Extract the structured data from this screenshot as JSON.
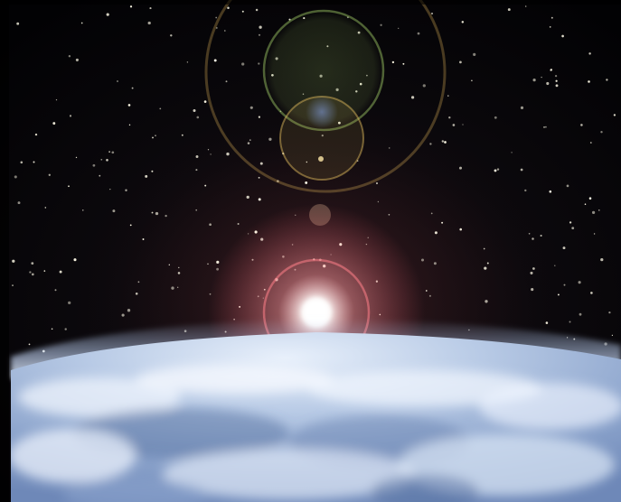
{
  "scene": {
    "subject": "earth-horizon-sunrise-with-lens-flare",
    "colors": {
      "space": "#06050a",
      "star": "#fffbe8",
      "sun_core": "#ffffff",
      "sun_glow": "#ff9aa0",
      "flare_green": "#a7d26a",
      "flare_gold": "#d8b45a",
      "flare_blue": "#8fb0ff",
      "atmosphere": "#bcd6ff",
      "earth_light": "#dfe9f7",
      "earth_mid": "#9fb4d6",
      "earth_dark": "#4f6a9c"
    }
  }
}
